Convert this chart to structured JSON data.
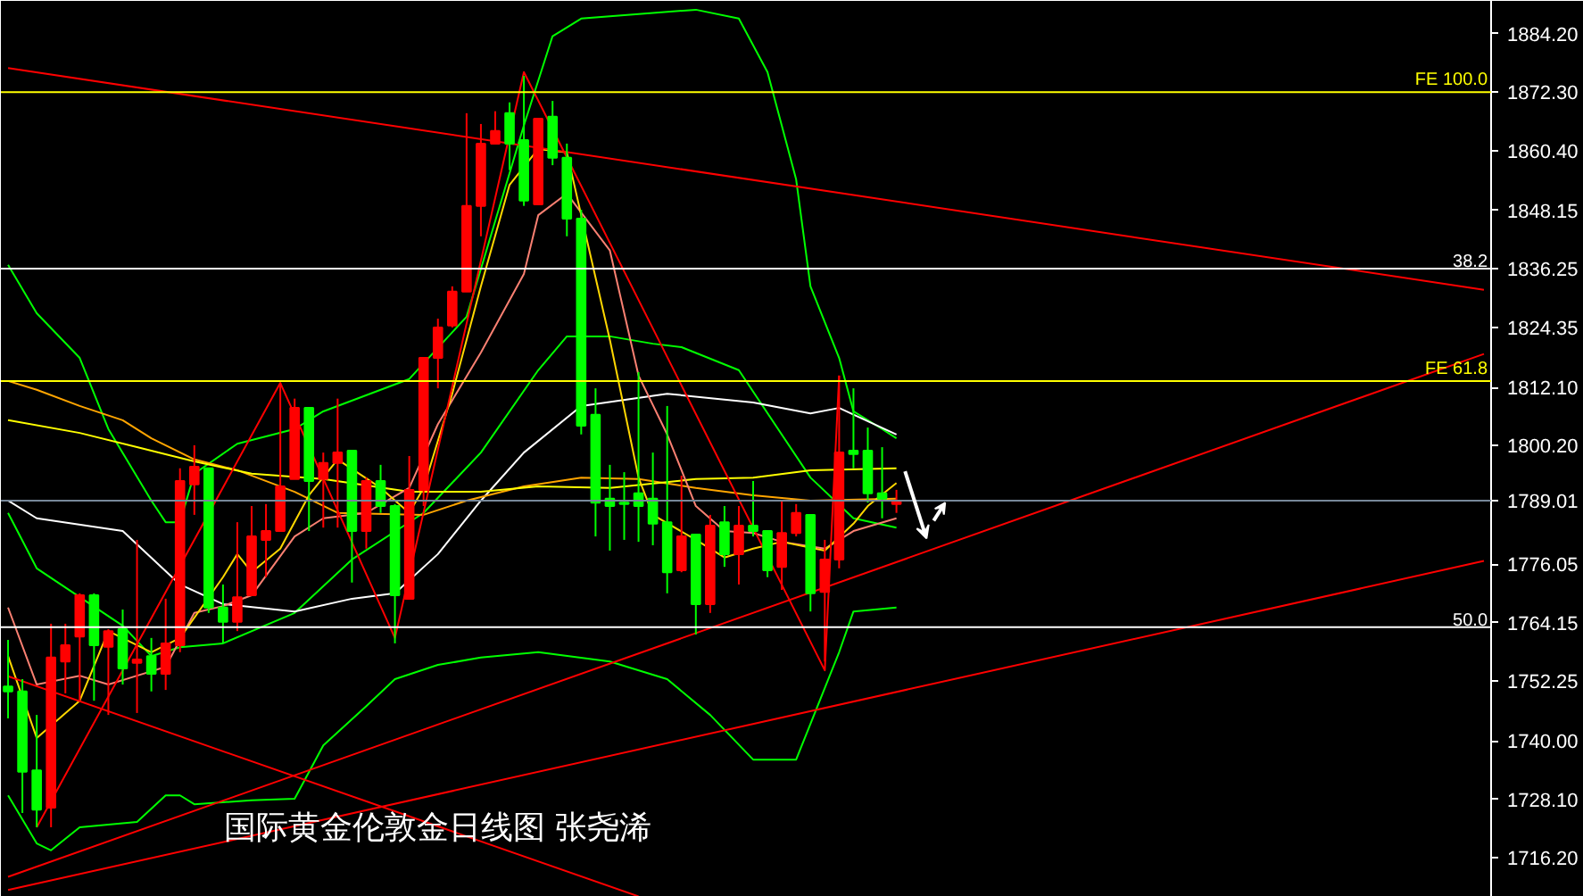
{
  "chart_data": {
    "type": "candlestick",
    "annotations": [
      "国际黄金伦敦金日线图  张尧浠",
      {
        "text": "38.2",
        "y": 1836.3
      },
      {
        "text": "50.0",
        "y": 1763.2
      }
    ],
    "categories": [
      null,
      null,
      null,
      null,
      null,
      null,
      null,
      null,
      null,
      null,
      null,
      null,
      null,
      null,
      null,
      null,
      null,
      null,
      null,
      null,
      null,
      null,
      null,
      null,
      null,
      null,
      null,
      null,
      null,
      null,
      null,
      null,
      null,
      null,
      null,
      null,
      null,
      null,
      null,
      null,
      null,
      null,
      null,
      null,
      null,
      null,
      null,
      null,
      null,
      null,
      null,
      null,
      null,
      null,
      null,
      null,
      null,
      null,
      null,
      null,
      null,
      null,
      null,
      null,
      null,
      null,
      null,
      null,
      null,
      null,
      null,
      null,
      null,
      null,
      null,
      null,
      null,
      null,
      null,
      null,
      null,
      null,
      null,
      null,
      null,
      null,
      null,
      null,
      null,
      null,
      null,
      null,
      null,
      null,
      null,
      null,
      null,
      null,
      null,
      null,
      null,
      null,
      null,
      null
    ],
    "ohlc": [
      [
        1751.1,
        1760.6,
        1744.6,
        1750.1
      ],
      [
        1750.1,
        1752.6,
        1725.3,
        1733.7
      ],
      [
        1734.0,
        1745.3,
        1722.4,
        1726.0
      ],
      [
        1726.4,
        1763.9,
        1722.4,
        1757.0
      ],
      [
        1756.2,
        1763.9,
        1749.7,
        1759.5
      ],
      [
        1761.3,
        1770.1,
        1748.2,
        1769.7
      ],
      [
        1769.7,
        1770.1,
        1748.2,
        1759.5
      ],
      [
        1759.2,
        1762.8,
        1745.3,
        1762.4
      ],
      [
        1762.8,
        1766.8,
        1751.5,
        1754.8
      ],
      [
        1755.9,
        1781.0,
        1745.7,
        1756.6
      ],
      [
        1757.3,
        1761.0,
        1750.1,
        1753.7
      ],
      [
        1753.7,
        1769.0,
        1750.4,
        1759.9
      ],
      [
        1759.5,
        1795.6,
        1758.1,
        1793.0
      ],
      [
        1792.3,
        1800.3,
        1786.1,
        1795.9
      ],
      [
        1795.6,
        1795.6,
        1766.1,
        1767.2
      ],
      [
        1767.2,
        1771.9,
        1759.9,
        1764.3
      ],
      [
        1764.3,
        1784.6,
        1762.4,
        1769.3
      ],
      [
        1769.7,
        1787.9,
        1769.7,
        1781.7
      ],
      [
        1781.0,
        1788.3,
        1773.4,
        1782.8
      ],
      [
        1782.8,
        1813.0,
        1782.8,
        1791.9
      ],
      [
        1793.4,
        1809.8,
        1793.4,
        1807.9
      ],
      [
        1807.9,
        1807.9,
        1782.8,
        1793.0
      ],
      [
        1793.4,
        1798.8,
        1783.5,
        1796.7
      ],
      [
        1796.7,
        1809.8,
        1783.5,
        1798.8
      ],
      [
        1799.2,
        1799.2,
        1772.3,
        1782.8
      ],
      [
        1782.8,
        1793.7,
        1779.2,
        1793.0
      ],
      [
        1793.0,
        1796.3,
        1786.5,
        1787.9
      ],
      [
        1787.9,
        1788.3,
        1759.9,
        1769.7
      ],
      [
        1769.0,
        1798.1,
        1769.0,
        1791.2
      ],
      [
        1791.2,
        1818.1,
        1787.9,
        1818.1
      ],
      [
        1818.1,
        1826.1,
        1811.9,
        1824.3
      ],
      [
        1824.7,
        1832.7,
        1824.3,
        1831.6
      ],
      [
        1831.6,
        1868.0,
        1831.6,
        1849.1
      ],
      [
        1849.1,
        1865.8,
        1842.9,
        1861.8
      ],
      [
        1861.8,
        1868.4,
        1861.8,
        1864.4
      ],
      [
        1868.0,
        1870.2,
        1856.4,
        1861.8
      ],
      [
        1862.5,
        1875.6,
        1849.1,
        1850.2
      ],
      [
        1849.4,
        1866.9,
        1849.4,
        1866.9
      ],
      [
        1867.3,
        1870.5,
        1857.4,
        1858.9
      ],
      [
        1858.9,
        1861.8,
        1842.9,
        1846.5
      ],
      [
        1846.5,
        1848.3,
        1802.5,
        1804.3
      ],
      [
        1806.5,
        1811.9,
        1781.7,
        1788.6
      ],
      [
        1789.4,
        1796.3,
        1778.8,
        1787.9
      ],
      [
        1788.6,
        1794.8,
        1781.0,
        1788.3
      ],
      [
        1790.5,
        1815.2,
        1780.6,
        1787.9
      ],
      [
        1789.4,
        1798.8,
        1779.9,
        1784.3
      ],
      [
        1784.6,
        1808.3,
        1770.1,
        1774.4
      ],
      [
        1774.8,
        1794.1,
        1774.4,
        1781.7
      ],
      [
        1782.1,
        1782.1,
        1761.7,
        1767.9
      ],
      [
        1767.9,
        1786.1,
        1766.1,
        1783.9
      ],
      [
        1784.6,
        1787.9,
        1775.5,
        1778.1
      ],
      [
        1778.1,
        1787.9,
        1771.9,
        1783.9
      ],
      [
        1783.9,
        1793.0,
        1781.7,
        1782.8
      ],
      [
        1782.8,
        1782.8,
        1773.4,
        1774.8
      ],
      [
        1775.5,
        1789.0,
        1770.8,
        1782.4
      ],
      [
        1782.4,
        1788.3,
        1781.7,
        1786.5
      ],
      [
        1786.1,
        1786.1,
        1766.4,
        1770.1
      ],
      [
        1770.4,
        1781.0,
        1756.2,
        1777.0
      ],
      [
        1777.0,
        1814.5,
        1775.2,
        1798.8
      ],
      [
        1799.2,
        1811.9,
        1795.6,
        1798.5
      ],
      [
        1799.2,
        1803.9,
        1788.6,
        1790.5
      ],
      [
        1790.5,
        1799.9,
        1785.4,
        1789.4
      ],
      [
        1788.3,
        1791.2,
        1786.5,
        1789.0
      ],
      null,
      null,
      null,
      null,
      null,
      null,
      null,
      null,
      null,
      null,
      null,
      null,
      null,
      null,
      null,
      null,
      null,
      null,
      null,
      null,
      null,
      null,
      null,
      null,
      null,
      null,
      null,
      null,
      null,
      null,
      null,
      null,
      null,
      null,
      null,
      null,
      null,
      null,
      null,
      null,
      null
    ],
    "colors": [
      "#00ff00",
      "#00ff00",
      "#00ff00",
      "#ff0000",
      "#ff0000",
      "#ff0000",
      "#00ff00",
      "#ff0000",
      "#00ff00",
      "#ff0000",
      "#00ff00",
      "#ff0000",
      "#ff0000",
      "#ff0000",
      "#00ff00",
      "#00ff00",
      "#ff0000",
      "#ff0000",
      "#ff0000",
      "#ff0000",
      "#ff0000",
      "#00ff00",
      "#ff0000",
      "#ff0000",
      "#00ff00",
      "#ff0000",
      "#00ff00",
      "#00ff00",
      "#ff0000",
      "#ff0000",
      "#ff0000",
      "#ff0000",
      "#ff0000",
      "#ff0000",
      "#ff0000",
      "#00ff00",
      "#00ff00",
      "#ff0000",
      "#00ff00",
      "#00ff00",
      "#00ff00",
      "#00ff00",
      "#00ff00",
      "#00ff00",
      "#00ff00",
      "#00ff00",
      "#00ff00",
      "#ff0000",
      "#00ff00",
      "#ff0000",
      "#00ff00",
      "#ff0000",
      "#00ff00",
      "#00ff00",
      "#ff0000",
      "#ff0000",
      "#00ff00",
      "#ff0000",
      "#ff0000",
      "#00ff00",
      "#00ff00",
      "#00ff00",
      "#ff0000",
      null,
      null,
      null,
      null,
      null,
      null,
      null,
      null,
      null,
      null,
      null,
      null,
      null,
      null,
      null,
      null,
      null,
      null,
      null,
      null,
      null,
      null,
      null,
      null,
      null,
      null,
      null,
      null,
      null,
      null,
      null,
      null,
      null,
      null,
      null,
      null,
      null,
      null,
      null,
      null,
      null
    ],
    "series": [
      {
        "type": "line",
        "color": "#00ff00",
        "values": [
          1837.1,
          null,
          1827.2,
          null,
          null,
          1818.1,
          null,
          1803.6,
          null,
          null,
          1789.0,
          1784.6,
          1784.6,
          1794.5,
          null,
          null,
          1800.6,
          null,
          null,
          null,
          1803.6,
          null,
          1807.2,
          null,
          null,
          null,
          null,
          1812.7,
          1813.8,
          null,
          null,
          null,
          1826.5,
          null,
          null,
          null,
          1865.5,
          null,
          1883.7,
          null,
          1887.3,
          null,
          null,
          1888.0,
          null,
          null,
          null,
          null,
          1889.1,
          null,
          null,
          1887.3,
          null,
          1876.4,
          null,
          1854.5,
          1832.7,
          null,
          1818.1,
          1807.2,
          null,
          1803.6,
          1801.7,
          null,
          null,
          null,
          null,
          null,
          null,
          null,
          null,
          null,
          null,
          null,
          null,
          null,
          null,
          null,
          null,
          null,
          null,
          null,
          null,
          null,
          null,
          null,
          null,
          null,
          null,
          null,
          null,
          null,
          null,
          null,
          null,
          null,
          null,
          null,
          null,
          null,
          null,
          null,
          null,
          null
        ]
      },
      {
        "type": "line",
        "color": "#00ff00",
        "values": [
          1786.5,
          null,
          1775.2,
          null,
          null,
          null,
          null,
          null,
          1763.5,
          null,
          1757.3,
          null,
          1759.1,
          null,
          null,
          1759.9,
          null,
          null,
          null,
          null,
          1766.1,
          null,
          null,
          null,
          1777.0,
          null,
          null,
          null,
          null,
          1786.5,
          null,
          null,
          null,
          1798.8,
          null,
          null,
          null,
          1815.6,
          null,
          1822.5,
          null,
          null,
          1822.5,
          null,
          null,
          1821.0,
          null,
          1820.3,
          null,
          null,
          null,
          1815.6,
          null,
          null,
          null,
          null,
          1793.7,
          null,
          null,
          1785.4,
          null,
          null,
          1783.5,
          null,
          null,
          null,
          null,
          null,
          null,
          null,
          null,
          null,
          null,
          null,
          null,
          null,
          null,
          null,
          null,
          null,
          null,
          null,
          null,
          null,
          null,
          null,
          null,
          null,
          null,
          null,
          null,
          null,
          null,
          null,
          null,
          null,
          null,
          null,
          null,
          null,
          null,
          null,
          null,
          null
        ]
      },
      {
        "type": "line",
        "color": "#00ff00",
        "values": [
          1728.9,
          null,
          1719.1,
          1717.7,
          null,
          1722.4,
          null,
          null,
          null,
          1723.5,
          null,
          1728.9,
          1728.9,
          1727.1,
          null,
          null,
          null,
          1727.9,
          null,
          null,
          1728.2,
          null,
          1739.1,
          null,
          null,
          1747.1,
          null,
          1752.6,
          null,
          null,
          1755.5,
          null,
          null,
          1757.0,
          null,
          null,
          null,
          1758.1,
          null,
          null,
          null,
          null,
          1756.2,
          null,
          null,
          null,
          1752.6,
          null,
          null,
          1745.3,
          null,
          null,
          1736.2,
          null,
          null,
          1736.2,
          1743.5,
          null,
          1758.1,
          1766.4,
          null,
          null,
          1767.2,
          null,
          null,
          null,
          null,
          null,
          null,
          null,
          null,
          null,
          null,
          null,
          null,
          null,
          null,
          null,
          null,
          null,
          null,
          null,
          null,
          null,
          null,
          null,
          null,
          null,
          null,
          null,
          null,
          null,
          null,
          null,
          null,
          null,
          null,
          null,
          null,
          null,
          null,
          null,
          null,
          null
        ]
      },
      {
        "type": "line",
        "color": "#ffffff",
        "values": [
          1789.0,
          null,
          1785.4,
          null,
          null,
          null,
          null,
          null,
          1782.8,
          null,
          null,
          null,
          1771.9,
          null,
          null,
          1767.9,
          null,
          null,
          null,
          null,
          1766.4,
          null,
          null,
          null,
          1769.0,
          null,
          null,
          1770.1,
          null,
          null,
          1778.1,
          null,
          null,
          1789.0,
          null,
          null,
          1798.8,
          null,
          null,
          null,
          1808.3,
          null,
          null,
          null,
          null,
          null,
          1810.8,
          null,
          null,
          null,
          null,
          null,
          1809.0,
          null,
          null,
          null,
          1806.8,
          null,
          1807.9,
          null,
          null,
          null,
          1802.5,
          null,
          null,
          null,
          null,
          null,
          null,
          null,
          null,
          null,
          null,
          null,
          null,
          null,
          null,
          null,
          null,
          null,
          null,
          null,
          null,
          null,
          null,
          null,
          null,
          null,
          null,
          null,
          null,
          null,
          null,
          null,
          null,
          null,
          null,
          null,
          null,
          null,
          null,
          null,
          null,
          null
        ]
      },
      {
        "type": "line",
        "color": "#ffa500",
        "values": [
          1813.4,
          null,
          1811.6,
          null,
          null,
          1808.3,
          null,
          null,
          1805.4,
          null,
          1801.7,
          null,
          null,
          1797.4,
          null,
          null,
          1795.2,
          null,
          null,
          null,
          1790.8,
          null,
          null,
          1786.5,
          null,
          null,
          null,
          null,
          null,
          1786.1,
          null,
          null,
          1789.0,
          null,
          null,
          null,
          1791.9,
          null,
          null,
          null,
          1793.7,
          null,
          null,
          null,
          1793.4,
          null,
          null,
          null,
          1791.6,
          null,
          null,
          null,
          1790.1,
          null,
          null,
          null,
          1789.0,
          null,
          null,
          null,
          null,
          null,
          1789.4,
          null,
          null,
          null,
          null,
          null,
          null,
          null,
          null,
          null,
          null,
          null,
          null,
          null,
          null,
          null,
          null,
          null,
          null,
          null,
          null,
          null,
          null,
          null,
          null,
          null,
          null,
          null,
          null,
          null,
          null,
          null,
          null,
          null,
          null,
          null,
          null,
          null,
          null,
          null,
          null,
          null
        ]
      },
      {
        "type": "line",
        "color": "#ffff00",
        "values": [
          1805.4,
          null,
          null,
          null,
          null,
          1802.8,
          null,
          null,
          null,
          1799.9,
          null,
          null,
          null,
          1797.0,
          null,
          null,
          null,
          1794.5,
          null,
          null,
          null,
          null,
          1793.4,
          null,
          null,
          null,
          null,
          null,
          1790.8,
          null,
          null,
          null,
          null,
          1790.8,
          null,
          null,
          null,
          1791.9,
          null,
          null,
          null,
          null,
          1791.6,
          null,
          null,
          null,
          null,
          null,
          1793.4,
          null,
          null,
          null,
          1793.7,
          null,
          null,
          null,
          1795.2,
          null,
          null,
          null,
          null,
          null,
          1795.6,
          null,
          null,
          null,
          null,
          null,
          null,
          null,
          null,
          null,
          null,
          null,
          null,
          null,
          null,
          null,
          null,
          null,
          null,
          null,
          null,
          null,
          null,
          null,
          null,
          null,
          null,
          null,
          null,
          null,
          null,
          null,
          null,
          null,
          null,
          null,
          null,
          null,
          null,
          null,
          null,
          null
        ]
      },
      {
        "type": "line",
        "color": "#fa8072",
        "values": [
          1767.2,
          null,
          1751.5,
          null,
          null,
          1753.3,
          null,
          1751.5,
          null,
          1753.3,
          null,
          1755.1,
          null,
          1766.1,
          null,
          1767.5,
          null,
          1769.7,
          null,
          null,
          1781.7,
          null,
          1785.4,
          null,
          null,
          1786.5,
          null,
          null,
          1791.6,
          null,
          1804.6,
          null,
          null,
          1819.2,
          null,
          null,
          1835.2,
          1847.2,
          null,
          1851.6,
          null,
          null,
          1840.0,
          null,
          1814.5,
          null,
          1802.5,
          null,
          1787.9,
          null,
          1782.8,
          null,
          1782.4,
          null,
          1780.6,
          null,
          null,
          1779.2,
          null,
          1782.8,
          null,
          null,
          1785.4,
          null,
          null,
          null,
          null,
          null,
          null,
          null,
          null,
          null,
          null,
          null,
          null,
          null,
          null,
          null,
          null,
          null,
          null,
          null,
          null,
          null,
          null,
          null,
          null,
          null,
          null,
          null,
          null,
          null,
          null,
          null,
          null,
          null,
          null,
          null,
          null,
          null,
          null,
          null,
          null,
          null
        ]
      },
      {
        "type": "line",
        "color": "#ffd700",
        "values": [
          1757.3,
          null,
          1740.6,
          null,
          null,
          1748.2,
          null,
          1762.4,
          null,
          null,
          1758.1,
          null,
          1761.0,
          null,
          null,
          1773.4,
          1778.1,
          1774.4,
          null,
          1779.2,
          null,
          1790.1,
          null,
          1797.4,
          null,
          null,
          1791.6,
          null,
          1786.5,
          1791.6,
          null,
          1810.8,
          null,
          1832.7,
          null,
          1853.4,
          null,
          1860.7,
          null,
          1860.0,
          1847.2,
          null,
          1821.8,
          null,
          1793.7,
          1786.1,
          null,
          null,
          1781.0,
          null,
          1777.4,
          null,
          1779.2,
          null,
          1780.6,
          null,
          null,
          1778.8,
          null,
          1784.3,
          1787.9,
          null,
          1792.6,
          null,
          null,
          null,
          null,
          null,
          null,
          null,
          null,
          null,
          null,
          null,
          null,
          null,
          null,
          null,
          null,
          null,
          null,
          null,
          null,
          null,
          null,
          null,
          null,
          null,
          null,
          null,
          null,
          null,
          null,
          null,
          null,
          null,
          null,
          null,
          null,
          null,
          null,
          null,
          null,
          null
        ]
      },
      {
        "type": "line",
        "color": "#ff0000",
        "values": [
          null,
          null,
          1722.4,
          null,
          null,
          null,
          null,
          null,
          null,
          null,
          null,
          null,
          null,
          null,
          null,
          null,
          null,
          null,
          null,
          1813.0,
          null,
          null,
          null,
          null,
          null,
          null,
          null,
          1761.0,
          null,
          null,
          null,
          null,
          null,
          null,
          null,
          null,
          1876.4,
          null,
          null,
          null,
          null,
          null,
          null,
          null,
          null,
          null,
          null,
          null,
          null,
          null,
          null,
          null,
          null,
          null,
          null,
          null,
          null,
          1754.4,
          1814.5,
          null,
          null,
          null,
          null,
          null,
          null,
          null,
          null,
          null,
          null,
          null,
          null,
          null,
          null,
          null,
          null,
          null,
          null,
          null,
          null,
          null,
          null,
          null,
          null,
          null,
          null,
          null,
          null,
          null,
          null,
          null,
          null,
          null,
          null,
          null,
          null,
          null,
          null,
          null,
          null,
          null,
          null,
          null,
          null,
          null
        ]
      },
      {
        "type": "line",
        "color": "#ff0000",
        "values": [
          1877.2,
          null,
          null,
          null,
          null,
          null,
          null,
          null,
          null,
          null,
          null,
          null,
          null,
          null,
          null,
          null,
          null,
          null,
          null,
          null,
          null,
          null,
          null,
          null,
          null,
          null,
          null,
          null,
          null,
          null,
          null,
          null,
          null,
          null,
          null,
          null,
          null,
          null,
          null,
          null,
          null,
          null,
          null,
          null,
          null,
          null,
          null,
          null,
          null,
          null,
          null,
          null,
          null,
          null,
          null,
          null,
          null,
          null,
          null,
          null,
          null,
          null,
          null,
          null,
          null,
          null,
          null,
          null,
          null,
          null,
          null,
          null,
          null,
          null,
          null,
          null,
          null,
          null,
          null,
          null,
          null,
          null,
          null,
          null,
          null,
          null,
          null,
          null,
          null,
          null,
          null,
          null,
          null,
          null,
          null,
          null,
          null,
          null,
          null,
          null,
          null,
          null,
          null,
          1832.0
        ]
      },
      {
        "type": "line",
        "color": "#ff0000",
        "values": [
          1712.3,
          null,
          null,
          null,
          null,
          null,
          null,
          null,
          null,
          null,
          null,
          null,
          null,
          null,
          null,
          null,
          null,
          null,
          null,
          null,
          null,
          null,
          null,
          null,
          null,
          null,
          null,
          null,
          null,
          null,
          null,
          null,
          null,
          null,
          null,
          null,
          null,
          null,
          null,
          null,
          null,
          null,
          null,
          null,
          null,
          null,
          null,
          null,
          null,
          null,
          null,
          null,
          null,
          null,
          null,
          null,
          null,
          null,
          null,
          null,
          null,
          null,
          null,
          null,
          null,
          null,
          null,
          null,
          null,
          null,
          null,
          null,
          null,
          null,
          null,
          null,
          null,
          null,
          null,
          null,
          null,
          null,
          null,
          null,
          null,
          null,
          null,
          null,
          null,
          null,
          null,
          null,
          null,
          null,
          null,
          null,
          null,
          null,
          null,
          null,
          null,
          null,
          null,
          1818.9
        ]
      },
      {
        "type": "line",
        "color": "#ff0000",
        "values": [
          1709.6,
          null,
          null,
          null,
          null,
          null,
          null,
          null,
          null,
          null,
          null,
          null,
          null,
          null,
          null,
          null,
          null,
          null,
          null,
          null,
          null,
          null,
          null,
          null,
          null,
          null,
          null,
          null,
          null,
          null,
          null,
          null,
          null,
          null,
          null,
          null,
          null,
          null,
          null,
          null,
          null,
          null,
          null,
          null,
          null,
          null,
          null,
          null,
          null,
          null,
          null,
          null,
          null,
          null,
          null,
          null,
          null,
          null,
          null,
          null,
          null,
          null,
          null,
          null,
          null,
          null,
          null,
          null,
          null,
          null,
          null,
          null,
          null,
          null,
          null,
          null,
          null,
          null,
          null,
          null,
          null,
          null,
          null,
          null,
          null,
          null,
          null,
          null,
          null,
          null,
          null,
          null,
          null,
          null,
          null,
          null,
          null,
          null,
          null,
          null,
          null,
          null,
          null,
          1776.7
        ]
      },
      {
        "type": "line",
        "color": "#ff0000",
        "values": [
          1753.2,
          null,
          null,
          null,
          null,
          null,
          null,
          null,
          null,
          null,
          null,
          null,
          null,
          null,
          null,
          null,
          null,
          null,
          null,
          null,
          null,
          null,
          null,
          null,
          null,
          null,
          null,
          null,
          null,
          null,
          null,
          null,
          null,
          null,
          null,
          null,
          null,
          null,
          null,
          null,
          null,
          null,
          null,
          null,
          1708.3,
          null,
          null,
          null,
          null,
          null,
          null,
          null,
          null,
          null,
          null,
          null,
          null,
          null,
          null,
          null,
          null,
          null,
          null,
          null,
          null,
          null,
          null,
          null,
          null,
          null,
          null,
          null,
          null,
          null,
          null,
          null,
          null,
          null,
          null,
          null,
          null,
          null,
          null,
          null,
          null,
          null,
          null,
          null,
          null,
          null,
          null,
          null,
          null,
          null,
          null,
          null,
          null,
          null,
          null,
          null,
          null,
          null,
          null,
          null
        ]
      }
    ],
    "ref_lines": [
      {
        "axis": "y",
        "value": 1872.3,
        "label": "FE 100.0",
        "color": "#ffff00"
      },
      {
        "axis": "y",
        "value": 1836.3,
        "color": "#ffffff"
      },
      {
        "axis": "y",
        "value": 1813.4,
        "label": "FE 61.8",
        "color": "#ffff00"
      },
      {
        "axis": "y",
        "value": 1789.01,
        "color": "#778899"
      },
      {
        "axis": "y",
        "value": 1763.2,
        "color": "#ffffff"
      }
    ],
    "ylim": [
      1708.2,
      1890.9
    ],
    "yticks": [
      {
        "value": 1884.2,
        "label": "1884.20"
      },
      {
        "value": 1872.3,
        "label": "1872.30"
      },
      {
        "value": 1860.4,
        "label": "1860.40"
      },
      {
        "value": 1848.15,
        "label": "1848.15"
      },
      {
        "value": 1836.25,
        "label": "1836.25"
      },
      {
        "value": 1824.35,
        "label": "1824.35"
      },
      {
        "value": 1812.1,
        "label": "1812.10"
      },
      {
        "value": 1800.2,
        "label": "1800.20"
      },
      {
        "value": 1789.01,
        "label": "1789.01"
      },
      {
        "value": 1776.05,
        "label": "1776.05"
      },
      {
        "value": 1764.15,
        "label": "1764.15"
      },
      {
        "value": 1752.25,
        "label": "1752.25"
      },
      {
        "value": 1740.0,
        "label": "1740.00"
      },
      {
        "value": 1728.1,
        "label": "1728.10"
      },
      {
        "value": 1716.2,
        "label": "1716.20"
      }
    ],
    "tick_labels": "y",
    "grid": false
  }
}
